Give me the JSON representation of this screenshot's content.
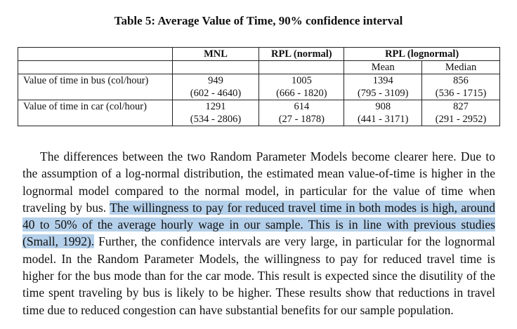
{
  "caption": "Table 5: Average Value of Time, 90% confidence interval",
  "table": {
    "headers": [
      "",
      "MNL",
      "RPL (normal)",
      "RPL (lognormal)"
    ],
    "subheaders": [
      "Mean",
      "Median"
    ],
    "rows": [
      {
        "label": "Value of time in bus (col/hour)",
        "mnl": {
          "value": "949",
          "ci": "(602 - 4640)"
        },
        "rpl_normal": {
          "value": "1005",
          "ci": "(666 - 1820)"
        },
        "rpl_lognormal_mean": {
          "value": "1394",
          "ci": "(795 - 3109)"
        },
        "rpl_lognormal_median": {
          "value": "856",
          "ci": "(536 - 1715)"
        }
      },
      {
        "label": "Value of time in car (col/hour)",
        "mnl": {
          "value": "1291",
          "ci": "(534 - 2806)"
        },
        "rpl_normal": {
          "value": "614",
          "ci": "(27 - 1878)"
        },
        "rpl_lognormal_mean": {
          "value": "908",
          "ci": "(441 - 3171)"
        },
        "rpl_lognormal_median": {
          "value": "827",
          "ci": "(291 - 2952)"
        }
      }
    ]
  },
  "paragraph": {
    "before": "The differences between the two Random Parameter Models become clearer here. Due to the assumption of a log-normal distribution, the estimated mean value-of-time is higher in the lognormal model compared to the normal model, in particular for the value of time when traveling by bus. ",
    "highlighted": "The willingness to pay for reduced travel time in both modes is high, around 40 to 50% of the average hourly wage in our sample. This is in line with previous studies (Small, 1992).",
    "after": " Further, the confidence intervals are very large, in particular for the lognormal model. In the Random Parameter Models, the willingness to pay for reduced travel time is higher for the bus mode than for the car mode. This result is expected since the disutility of the time spent traveling by bus is likely to be higher. These results show that reductions in travel time due to reduced congestion can have substantial benefits for our sample population."
  },
  "colors": {
    "highlight": "#b5d0ea",
    "text": "#111111"
  }
}
